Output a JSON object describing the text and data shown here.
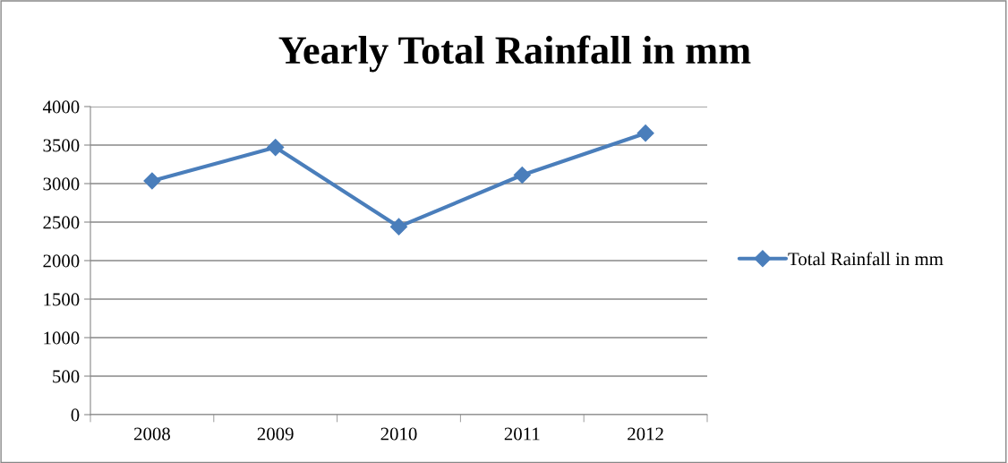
{
  "chart_data": {
    "type": "line",
    "title": "Yearly Total Rainfall in mm",
    "categories": [
      "2008",
      "2009",
      "2010",
      "2011",
      "2012"
    ],
    "series": [
      {
        "name": "Total Rainfall in mm",
        "color": "#4a7ebb",
        "values": [
          3035,
          3470,
          2440,
          3110,
          3655
        ]
      }
    ],
    "ylim": [
      0,
      4000
    ],
    "yticks": [
      0,
      500,
      1000,
      1500,
      2000,
      2500,
      3000,
      3500,
      4000
    ],
    "grid": "y",
    "legend": "right",
    "marker": "diamond",
    "line_style": "solid"
  }
}
